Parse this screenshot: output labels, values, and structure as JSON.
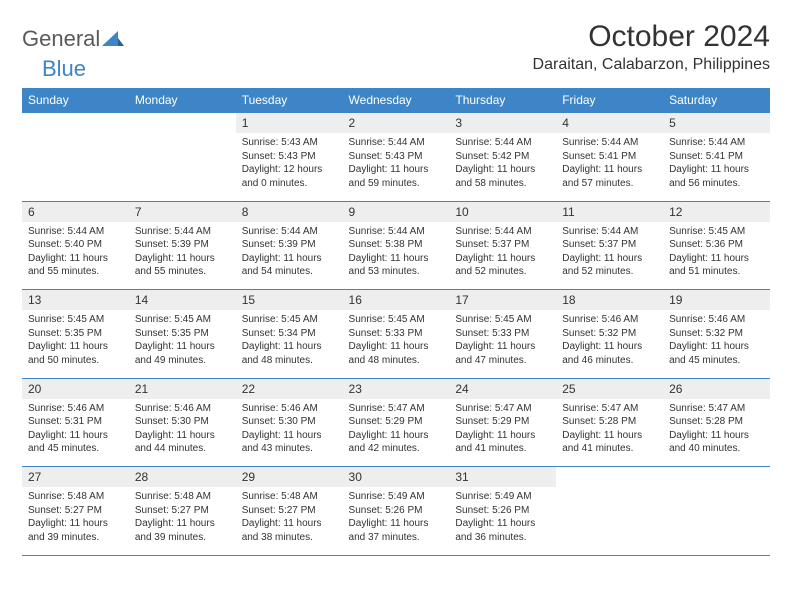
{
  "logo": {
    "text1": "General",
    "text2": "Blue"
  },
  "title": "October 2024",
  "location": "Daraitan, Calabarzon, Philippines",
  "colors": {
    "header_bg": "#3d85c6",
    "header_text": "#ffffff",
    "daynum_bg": "#eeeeee",
    "border": "#3d85c6",
    "text": "#333333",
    "logo_gray": "#5a5a5a",
    "logo_blue": "#3d85c6",
    "background": "#ffffff"
  },
  "day_headers": [
    "Sunday",
    "Monday",
    "Tuesday",
    "Wednesday",
    "Thursday",
    "Friday",
    "Saturday"
  ],
  "weeks": [
    [
      null,
      null,
      {
        "n": "1",
        "sr": "Sunrise: 5:43 AM",
        "ss": "Sunset: 5:43 PM",
        "d1": "Daylight: 12 hours",
        "d2": "and 0 minutes."
      },
      {
        "n": "2",
        "sr": "Sunrise: 5:44 AM",
        "ss": "Sunset: 5:43 PM",
        "d1": "Daylight: 11 hours",
        "d2": "and 59 minutes."
      },
      {
        "n": "3",
        "sr": "Sunrise: 5:44 AM",
        "ss": "Sunset: 5:42 PM",
        "d1": "Daylight: 11 hours",
        "d2": "and 58 minutes."
      },
      {
        "n": "4",
        "sr": "Sunrise: 5:44 AM",
        "ss": "Sunset: 5:41 PM",
        "d1": "Daylight: 11 hours",
        "d2": "and 57 minutes."
      },
      {
        "n": "5",
        "sr": "Sunrise: 5:44 AM",
        "ss": "Sunset: 5:41 PM",
        "d1": "Daylight: 11 hours",
        "d2": "and 56 minutes."
      }
    ],
    [
      {
        "n": "6",
        "sr": "Sunrise: 5:44 AM",
        "ss": "Sunset: 5:40 PM",
        "d1": "Daylight: 11 hours",
        "d2": "and 55 minutes."
      },
      {
        "n": "7",
        "sr": "Sunrise: 5:44 AM",
        "ss": "Sunset: 5:39 PM",
        "d1": "Daylight: 11 hours",
        "d2": "and 55 minutes."
      },
      {
        "n": "8",
        "sr": "Sunrise: 5:44 AM",
        "ss": "Sunset: 5:39 PM",
        "d1": "Daylight: 11 hours",
        "d2": "and 54 minutes."
      },
      {
        "n": "9",
        "sr": "Sunrise: 5:44 AM",
        "ss": "Sunset: 5:38 PM",
        "d1": "Daylight: 11 hours",
        "d2": "and 53 minutes."
      },
      {
        "n": "10",
        "sr": "Sunrise: 5:44 AM",
        "ss": "Sunset: 5:37 PM",
        "d1": "Daylight: 11 hours",
        "d2": "and 52 minutes."
      },
      {
        "n": "11",
        "sr": "Sunrise: 5:44 AM",
        "ss": "Sunset: 5:37 PM",
        "d1": "Daylight: 11 hours",
        "d2": "and 52 minutes."
      },
      {
        "n": "12",
        "sr": "Sunrise: 5:45 AM",
        "ss": "Sunset: 5:36 PM",
        "d1": "Daylight: 11 hours",
        "d2": "and 51 minutes."
      }
    ],
    [
      {
        "n": "13",
        "sr": "Sunrise: 5:45 AM",
        "ss": "Sunset: 5:35 PM",
        "d1": "Daylight: 11 hours",
        "d2": "and 50 minutes."
      },
      {
        "n": "14",
        "sr": "Sunrise: 5:45 AM",
        "ss": "Sunset: 5:35 PM",
        "d1": "Daylight: 11 hours",
        "d2": "and 49 minutes."
      },
      {
        "n": "15",
        "sr": "Sunrise: 5:45 AM",
        "ss": "Sunset: 5:34 PM",
        "d1": "Daylight: 11 hours",
        "d2": "and 48 minutes."
      },
      {
        "n": "16",
        "sr": "Sunrise: 5:45 AM",
        "ss": "Sunset: 5:33 PM",
        "d1": "Daylight: 11 hours",
        "d2": "and 48 minutes."
      },
      {
        "n": "17",
        "sr": "Sunrise: 5:45 AM",
        "ss": "Sunset: 5:33 PM",
        "d1": "Daylight: 11 hours",
        "d2": "and 47 minutes."
      },
      {
        "n": "18",
        "sr": "Sunrise: 5:46 AM",
        "ss": "Sunset: 5:32 PM",
        "d1": "Daylight: 11 hours",
        "d2": "and 46 minutes."
      },
      {
        "n": "19",
        "sr": "Sunrise: 5:46 AM",
        "ss": "Sunset: 5:32 PM",
        "d1": "Daylight: 11 hours",
        "d2": "and 45 minutes."
      }
    ],
    [
      {
        "n": "20",
        "sr": "Sunrise: 5:46 AM",
        "ss": "Sunset: 5:31 PM",
        "d1": "Daylight: 11 hours",
        "d2": "and 45 minutes."
      },
      {
        "n": "21",
        "sr": "Sunrise: 5:46 AM",
        "ss": "Sunset: 5:30 PM",
        "d1": "Daylight: 11 hours",
        "d2": "and 44 minutes."
      },
      {
        "n": "22",
        "sr": "Sunrise: 5:46 AM",
        "ss": "Sunset: 5:30 PM",
        "d1": "Daylight: 11 hours",
        "d2": "and 43 minutes."
      },
      {
        "n": "23",
        "sr": "Sunrise: 5:47 AM",
        "ss": "Sunset: 5:29 PM",
        "d1": "Daylight: 11 hours",
        "d2": "and 42 minutes."
      },
      {
        "n": "24",
        "sr": "Sunrise: 5:47 AM",
        "ss": "Sunset: 5:29 PM",
        "d1": "Daylight: 11 hours",
        "d2": "and 41 minutes."
      },
      {
        "n": "25",
        "sr": "Sunrise: 5:47 AM",
        "ss": "Sunset: 5:28 PM",
        "d1": "Daylight: 11 hours",
        "d2": "and 41 minutes."
      },
      {
        "n": "26",
        "sr": "Sunrise: 5:47 AM",
        "ss": "Sunset: 5:28 PM",
        "d1": "Daylight: 11 hours",
        "d2": "and 40 minutes."
      }
    ],
    [
      {
        "n": "27",
        "sr": "Sunrise: 5:48 AM",
        "ss": "Sunset: 5:27 PM",
        "d1": "Daylight: 11 hours",
        "d2": "and 39 minutes."
      },
      {
        "n": "28",
        "sr": "Sunrise: 5:48 AM",
        "ss": "Sunset: 5:27 PM",
        "d1": "Daylight: 11 hours",
        "d2": "and 39 minutes."
      },
      {
        "n": "29",
        "sr": "Sunrise: 5:48 AM",
        "ss": "Sunset: 5:27 PM",
        "d1": "Daylight: 11 hours",
        "d2": "and 38 minutes."
      },
      {
        "n": "30",
        "sr": "Sunrise: 5:49 AM",
        "ss": "Sunset: 5:26 PM",
        "d1": "Daylight: 11 hours",
        "d2": "and 37 minutes."
      },
      {
        "n": "31",
        "sr": "Sunrise: 5:49 AM",
        "ss": "Sunset: 5:26 PM",
        "d1": "Daylight: 11 hours",
        "d2": "and 36 minutes."
      },
      null,
      null
    ]
  ]
}
